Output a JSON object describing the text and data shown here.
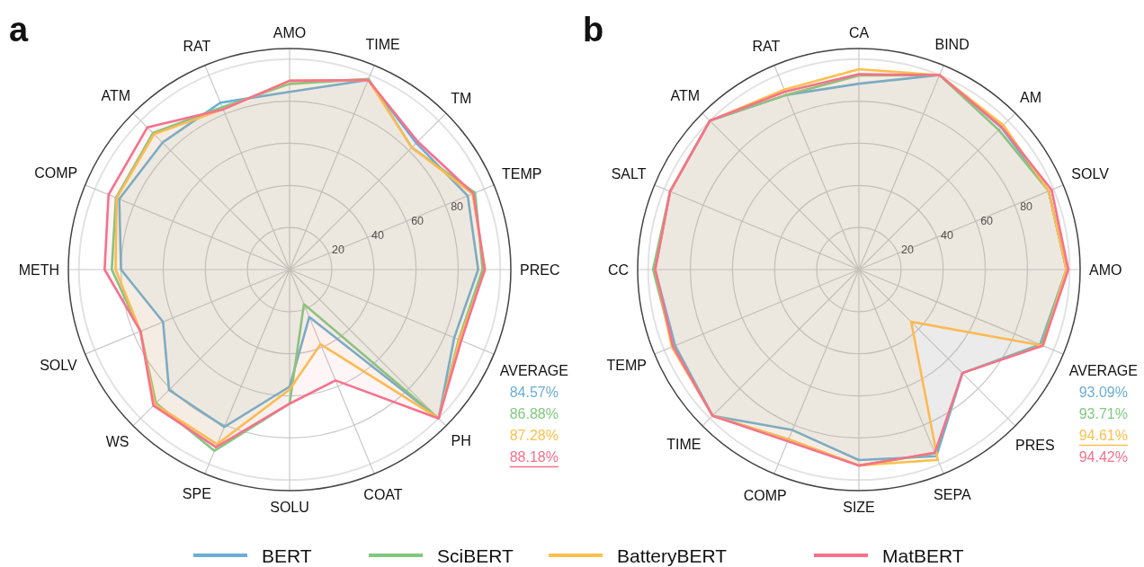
{
  "chart_data": [
    {
      "type": "radar",
      "title": "a",
      "categories": [
        "AMO",
        "TIME",
        "TM",
        "TEMP",
        "PREC",
        "AVERAGE",
        "PH",
        "COAT",
        "SOLU",
        "SPE",
        "WS",
        "SOLV",
        "METH",
        "COMP",
        "ATM",
        "RAT"
      ],
      "ylim": [
        0,
        105
      ],
      "yticks": [
        20,
        40,
        60,
        80
      ],
      "grid": true,
      "legend": "bottom",
      "annotations": [
        "84.57%",
        "86.88%",
        "87.28%",
        "88.18%"
      ],
      "series": [
        {
          "name": "BERT",
          "color": "#6aaed6",
          "values": [
            84.4,
            97.5,
            85,
            91.5,
            89.5,
            84.57,
            100,
            24.4,
            55.6,
            80.9,
            80.9,
            65,
            80,
            87.5,
            85.3,
            85.8
          ]
        },
        {
          "name": "SciBERT",
          "color": "#7fc97f",
          "values": [
            88.2,
            98,
            82,
            95.3,
            91.6,
            86.88,
            100,
            17.8,
            63.7,
            93.2,
            89.7,
            76.6,
            84.4,
            89.2,
            91.7,
            83.5
          ]
        },
        {
          "name": "BatteryBERT",
          "color": "#fdc04e",
          "values": [
            89.7,
            97.5,
            82,
            94,
            92.8,
            87.28,
            100,
            38.4,
            57,
            89.8,
            90.5,
            76.6,
            82.6,
            88.8,
            91,
            82.4
          ]
        },
        {
          "name": "MatBERT",
          "color": "#f7718c",
          "values": [
            89.7,
            97.5,
            86,
            94.4,
            92.6,
            88.18,
            100,
            57,
            63.7,
            91.3,
            91.4,
            76.6,
            87.8,
            93,
            95.5,
            82.4
          ]
        }
      ]
    },
    {
      "type": "radar",
      "title": "b",
      "categories": [
        "CA",
        "BIND",
        "AM",
        "SOLV",
        "AMO",
        "AVERAGE",
        "PRES",
        "SEPA",
        "SIZE",
        "COMP",
        "TIME",
        "TEMP",
        "CC",
        "SALT",
        "ATM",
        "RAT"
      ],
      "ylim": [
        0,
        105
      ],
      "yticks": [
        20,
        40,
        60,
        80
      ],
      "grid": true,
      "annotations": [
        "93.09%",
        "93.71%",
        "94.61%",
        "94.42%"
      ],
      "series": [
        {
          "name": "BERT",
          "color": "#6aaed6",
          "values": [
            88.3,
            100,
            95.5,
            97.5,
            98.5,
            93.09,
            69.5,
            96,
            90.5,
            82.5,
            98.2,
            94.4,
            96.7,
            97,
            100,
            89.8
          ]
        },
        {
          "name": "SciBERT",
          "color": "#7fc97f",
          "values": [
            92.2,
            100,
            93.8,
            97.5,
            98.5,
            93.71,
            69.5,
            94.5,
            93.1,
            87.3,
            98.2,
            95.5,
            97.7,
            97,
            100,
            89.8
          ]
        },
        {
          "name": "BatteryBERT",
          "color": "#fdc04e",
          "values": [
            95.2,
            100,
            97,
            97.5,
            98.5,
            94.61,
            35.1,
            97.8,
            93,
            87.3,
            98.2,
            96.1,
            96.7,
            97,
            100,
            92.5
          ]
        },
        {
          "name": "MatBERT",
          "color": "#f7718c",
          "values": [
            92.8,
            100,
            95.8,
            99,
            99.4,
            94.42,
            69.5,
            94.2,
            93.1,
            88.3,
            98.2,
            95.5,
            96.7,
            97,
            100,
            91.5
          ]
        }
      ]
    }
  ]
}
